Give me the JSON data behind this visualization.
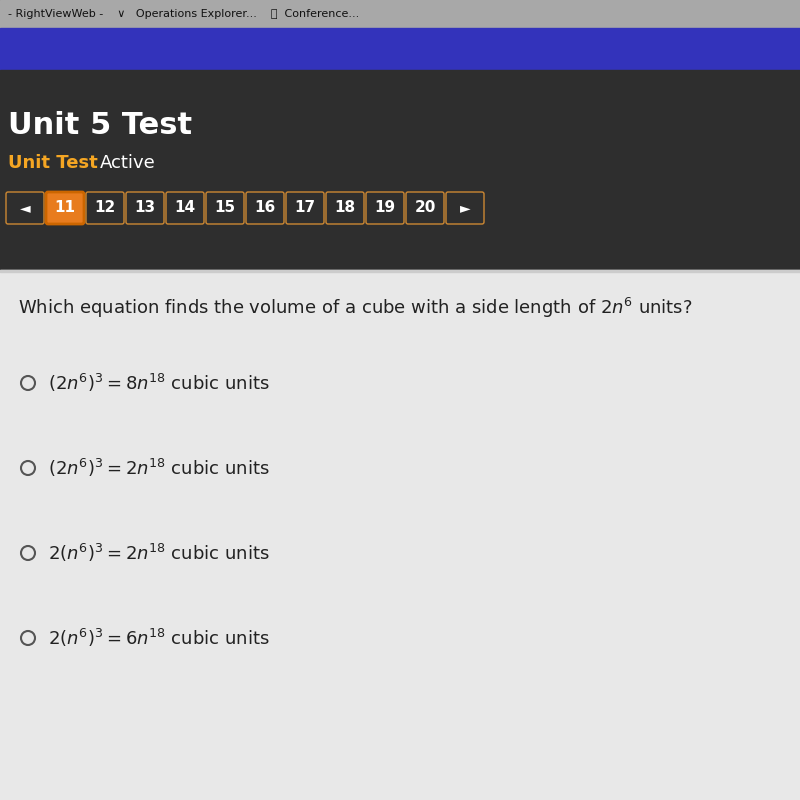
{
  "title": "Unit 5 Test",
  "subtitle": "Unit Test",
  "subtitle2": "Active",
  "bg_dark": "#2e2e2e",
  "bg_blue": "#3333bb",
  "bg_content": "#e8e8e8",
  "bg_browser": "#aaaaaa",
  "nav_numbers": [
    "11",
    "12",
    "13",
    "14",
    "15",
    "16",
    "17",
    "18",
    "19",
    "20"
  ],
  "active_num": "11",
  "active_color": "#e87c1e",
  "active_border": "#cc6600",
  "inactive_box_color": "#2e2e2e",
  "inactive_border_color": "#cc8833",
  "nav_text_color": "#ffffff",
  "question_text": "Which equation finds the volume of a cube with a side length of $2n^6$ units?",
  "option1": "$\\left(2n^6\\right)^3 = 8n^{18}$ cubic units",
  "option2": "$\\left(2n^6\\right)^3 = 2n^{18}$ cubic units",
  "option3": "$2\\left(n^6\\right)^3 = 2n^{18}$ cubic units",
  "option4": "$2\\left(n^6\\right)^3 = 6n^{18}$ cubic units",
  "browser_text": "- RightViewWeb -    ∨   Operations Explorer...    🔗  Conference...",
  "title_fontsize": 22,
  "subtitle_fontsize": 13,
  "nav_fontsize": 11,
  "question_fontsize": 13,
  "option_fontsize": 13
}
